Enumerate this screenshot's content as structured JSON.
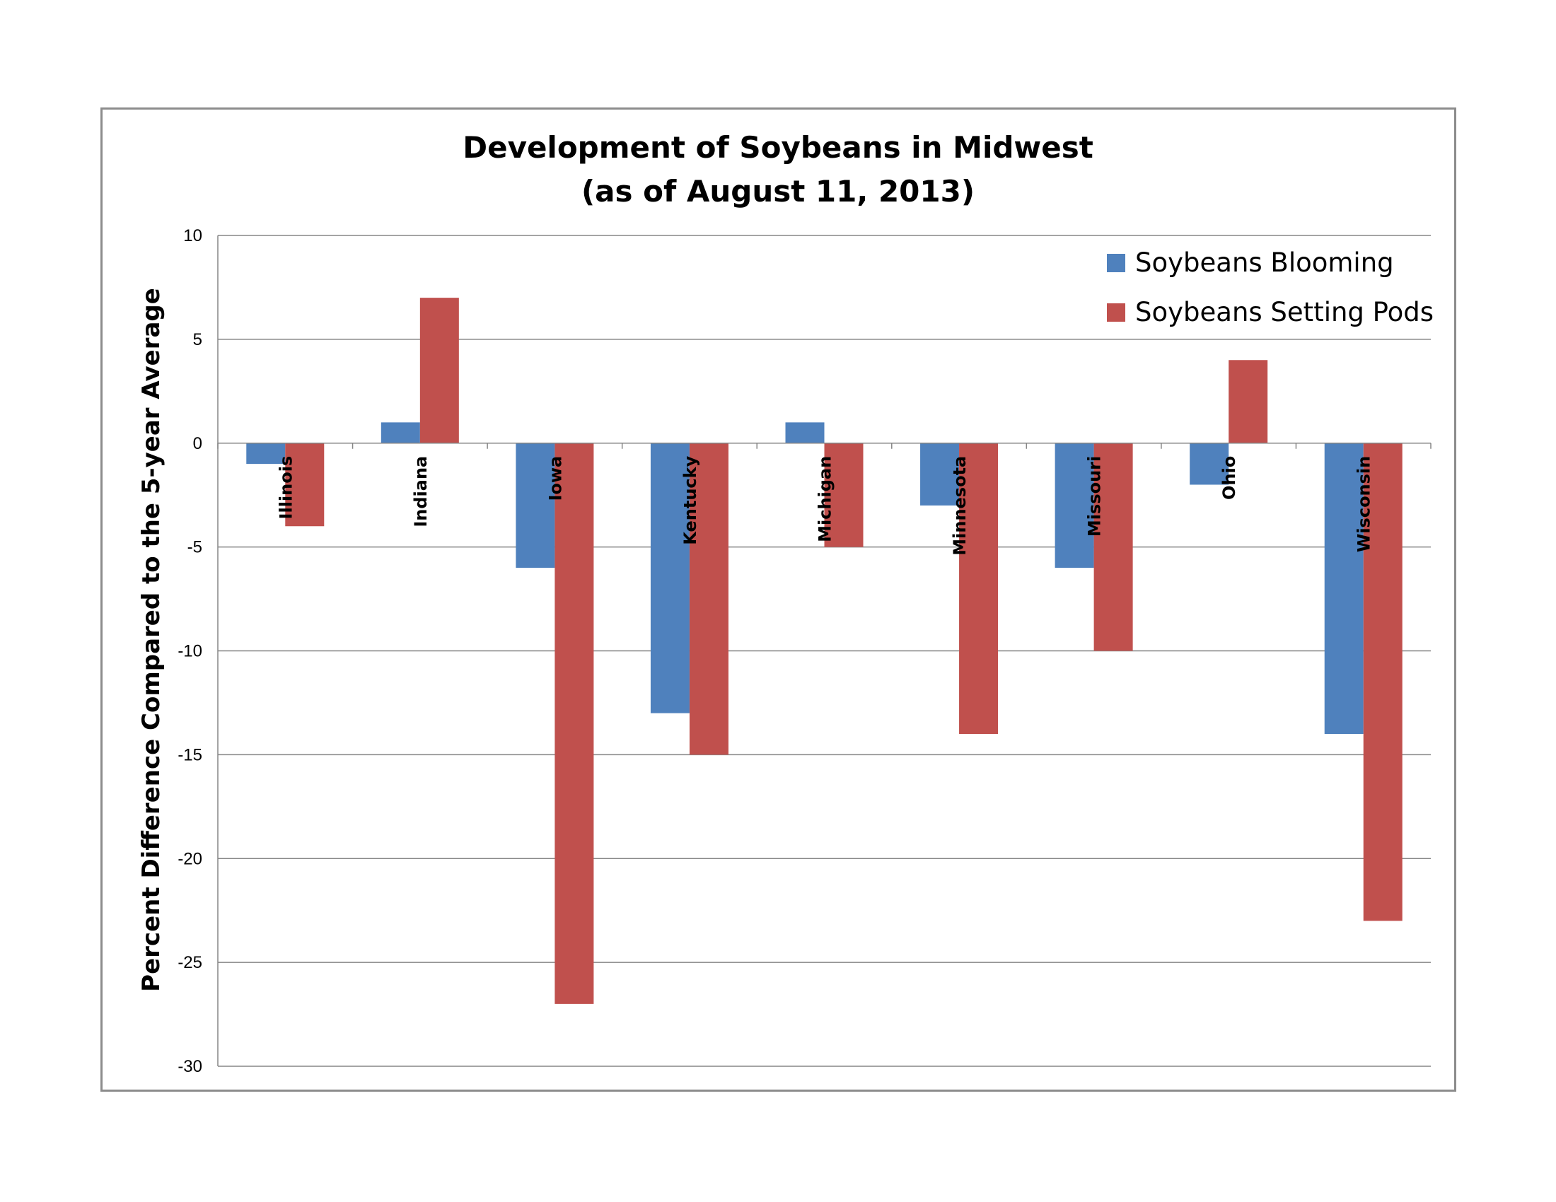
{
  "chart_data": {
    "type": "bar",
    "title_lines": [
      "Development of Soybeans in Midwest",
      "(as of August 11, 2013)"
    ],
    "xlabel": "",
    "ylabel": "Percent Difference Compared to the 5-year Average",
    "ylim": [
      -30,
      10
    ],
    "yticks": [
      10,
      5,
      0,
      -5,
      -10,
      -15,
      -20,
      -25,
      -30
    ],
    "grid": true,
    "legend_position": "top-right",
    "categories": [
      "Illinois",
      "Indiana",
      "Iowa",
      "Kentucky",
      "Michigan",
      "Minnesota",
      "Missouri",
      "Ohio",
      "Wisconsin"
    ],
    "series": [
      {
        "name": "Soybeans Blooming",
        "color": "#4f81bd",
        "values": [
          -1,
          1,
          -6,
          -13,
          1,
          -3,
          -6,
          -2,
          -14
        ]
      },
      {
        "name": "Soybeans Setting Pods",
        "color": "#c0504d",
        "values": [
          -4,
          7,
          -27,
          -15,
          -5,
          -14,
          -10,
          4,
          -23
        ]
      }
    ]
  }
}
